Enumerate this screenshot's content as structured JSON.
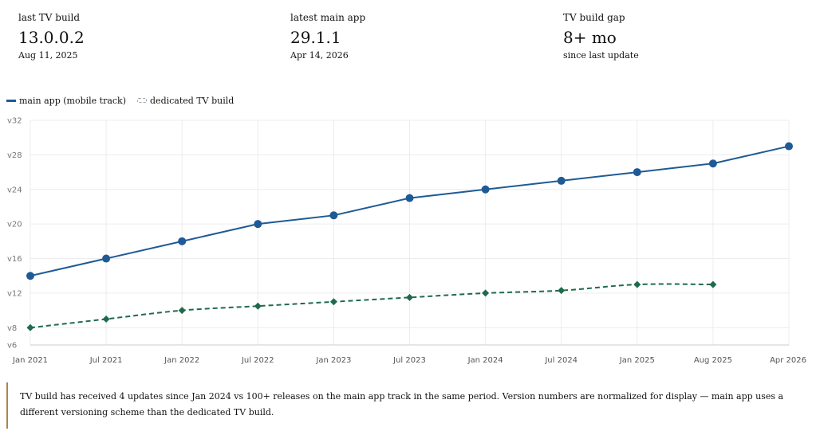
{
  "stats": [
    {
      "label": "last TV build",
      "value": "13.0.0.2",
      "sub": "Aug 11, 2025"
    },
    {
      "label": "latest main app",
      "value": "29.1.1",
      "sub": "Apr 14, 2026"
    },
    {
      "label": "TV build gap",
      "value": "8+ mo",
      "sub": "since last update"
    }
  ],
  "legend": {
    "main": "main app (mobile track)",
    "tv": "dedicated TV build"
  },
  "colors": {
    "main": "#1f5a96",
    "tv": "#1e6b4c",
    "grid": "#ececec"
  },
  "chart_data": {
    "type": "line",
    "categories": [
      "Jan 2021",
      "Jul 2021",
      "Jan 2022",
      "Jul 2022",
      "Jan 2023",
      "Jul 2023",
      "Jan 2024",
      "Jul 2024",
      "Jan 2025",
      "Aug 2025",
      "Apr 2026"
    ],
    "y_ticks": [
      {
        "v": 6,
        "label": "v6"
      },
      {
        "v": 8,
        "label": "v8"
      },
      {
        "v": 12,
        "label": "v12"
      },
      {
        "v": 16,
        "label": "v16"
      },
      {
        "v": 20,
        "label": "v20"
      },
      {
        "v": 24,
        "label": "v24"
      },
      {
        "v": 28,
        "label": "v28"
      },
      {
        "v": 32,
        "label": "v32"
      }
    ],
    "ylim": [
      6,
      32
    ],
    "grid": true,
    "legend_position": "top-left",
    "series": [
      {
        "name": "main app (mobile track)",
        "style": "solid",
        "marker": "circle",
        "values": [
          14,
          16,
          18,
          20,
          21,
          23,
          24,
          25,
          26,
          27,
          29
        ]
      },
      {
        "name": "dedicated TV build",
        "style": "dashed",
        "marker": "diamond",
        "values": [
          8,
          9,
          10,
          10.5,
          11,
          11.5,
          12,
          12.3,
          13,
          13,
          null
        ]
      }
    ]
  },
  "note": "TV build has received 4 updates since Jan 2024 vs 100+ releases on the main app track in the same period. Version numbers are normalized for display — main app uses a different versioning scheme than the dedicated TV build."
}
